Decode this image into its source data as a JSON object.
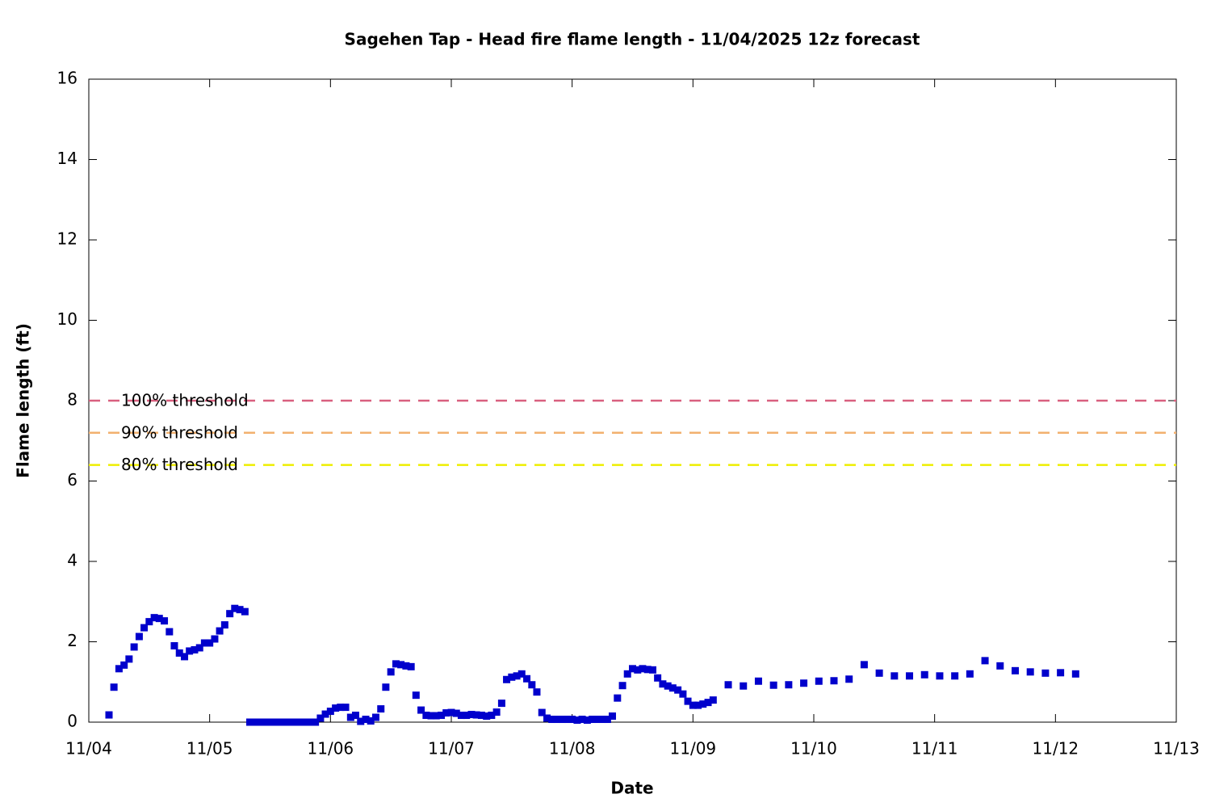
{
  "chart_data": {
    "type": "scatter",
    "title": "Sagehen Tap - Head fire flame length - 11/04/2025 12z forecast",
    "x_label": "Date",
    "y_label": "Flame length (ft)",
    "xlim": [
      0,
      9
    ],
    "xticks": [
      {
        "value": 0,
        "label": "11/04"
      },
      {
        "value": 1,
        "label": "11/05"
      },
      {
        "value": 2,
        "label": "11/06"
      },
      {
        "value": 3,
        "label": "11/07"
      },
      {
        "value": 4,
        "label": "11/08"
      },
      {
        "value": 5,
        "label": "11/09"
      },
      {
        "value": 6,
        "label": "11/10"
      },
      {
        "value": 7,
        "label": "11/11"
      },
      {
        "value": 8,
        "label": "11/12"
      },
      {
        "value": 9,
        "label": "11/13"
      }
    ],
    "ylim": [
      0,
      16
    ],
    "yticks": [
      0,
      2,
      4,
      6,
      8,
      10,
      12,
      14,
      16
    ],
    "thresholds": [
      {
        "label": "100% threshold",
        "value": 8,
        "color": "#d9607f"
      },
      {
        "label": "90% threshold",
        "value": 7.2,
        "color": "#f2b06e"
      },
      {
        "label": "80% threshold",
        "value": 6.4,
        "color": "#eeee00"
      }
    ],
    "series": [
      {
        "color": "#0000cc",
        "x": [
          0.167,
          0.208,
          0.25,
          0.292,
          0.333,
          0.375,
          0.417,
          0.458,
          0.5,
          0.542,
          0.583,
          0.625,
          0.667,
          0.708,
          0.75,
          0.792,
          0.833,
          0.875,
          0.917,
          0.958,
          1,
          1.042,
          1.083,
          1.125,
          1.167,
          1.208,
          1.25,
          1.292,
          1.333,
          1.375,
          1.417,
          1.458,
          1.5,
          1.542,
          1.583,
          1.625,
          1.667,
          1.708,
          1.75,
          1.792,
          1.833,
          1.875,
          1.917,
          1.958,
          2,
          2.042,
          2.083,
          2.125,
          2.167,
          2.208,
          2.25,
          2.292,
          2.333,
          2.375,
          2.417,
          2.458,
          2.5,
          2.542,
          2.583,
          2.625,
          2.667,
          2.708,
          2.75,
          2.792,
          2.833,
          2.875,
          2.917,
          2.958,
          3,
          3.042,
          3.083,
          3.125,
          3.167,
          3.208,
          3.25,
          3.292,
          3.333,
          3.375,
          3.417,
          3.458,
          3.5,
          3.542,
          3.583,
          3.625,
          3.667,
          3.708,
          3.75,
          3.792,
          3.833,
          3.875,
          3.917,
          3.958,
          4,
          4.042,
          4.083,
          4.125,
          4.167,
          4.208,
          4.25,
          4.292,
          4.333,
          4.375,
          4.417,
          4.458,
          4.5,
          4.542,
          4.583,
          4.625,
          4.667,
          4.708,
          4.75,
          4.792,
          4.833,
          4.875,
          4.917,
          4.958,
          5,
          5.042,
          5.083,
          5.125,
          5.167,
          5.292,
          5.417,
          5.542,
          5.667,
          5.792,
          5.917,
          6.042,
          6.167,
          6.292,
          6.417,
          6.542,
          6.667,
          6.792,
          6.917,
          7.042,
          7.167,
          7.292,
          7.417,
          7.542,
          7.667,
          7.792,
          7.917,
          8.042,
          8.167
        ],
        "values": [
          0.18,
          0.87,
          1.33,
          1.42,
          1.57,
          1.87,
          2.13,
          2.35,
          2.5,
          2.6,
          2.58,
          2.52,
          2.25,
          1.9,
          1.72,
          1.63,
          1.77,
          1.8,
          1.85,
          1.97,
          1.97,
          2.07,
          2.27,
          2.42,
          2.7,
          2.83,
          2.8,
          2.75,
          0,
          0,
          0,
          0,
          0,
          0,
          0,
          0,
          0,
          0,
          0,
          0,
          0,
          0,
          0.1,
          0.2,
          0.27,
          0.35,
          0.37,
          0.37,
          0.12,
          0.17,
          0.02,
          0.07,
          0.03,
          0.12,
          0.33,
          0.87,
          1.25,
          1.45,
          1.43,
          1.4,
          1.38,
          0.67,
          0.3,
          0.17,
          0.16,
          0.16,
          0.17,
          0.23,
          0.24,
          0.22,
          0.17,
          0.17,
          0.19,
          0.18,
          0.17,
          0.15,
          0.17,
          0.25,
          0.47,
          1.06,
          1.12,
          1.15,
          1.2,
          1.08,
          0.93,
          0.75,
          0.24,
          0.1,
          0.07,
          0.07,
          0.07,
          0.07,
          0.07,
          0.05,
          0.07,
          0.05,
          0.07,
          0.07,
          0.07,
          0.07,
          0.15,
          0.6,
          0.91,
          1.2,
          1.33,
          1.3,
          1.33,
          1.31,
          1.3,
          1.1,
          0.95,
          0.9,
          0.85,
          0.8,
          0.7,
          0.52,
          0.42,
          0.42,
          0.45,
          0.49,
          0.55,
          0.93,
          0.9,
          1.02,
          0.92,
          0.93,
          0.97,
          1.02,
          1.03,
          1.07,
          1.43,
          1.22,
          1.15,
          1.15,
          1.18,
          1.15,
          1.15,
          1.2,
          1.53,
          1.4,
          1.28,
          1.25,
          1.22,
          1.23,
          1.2
        ]
      }
    ]
  }
}
